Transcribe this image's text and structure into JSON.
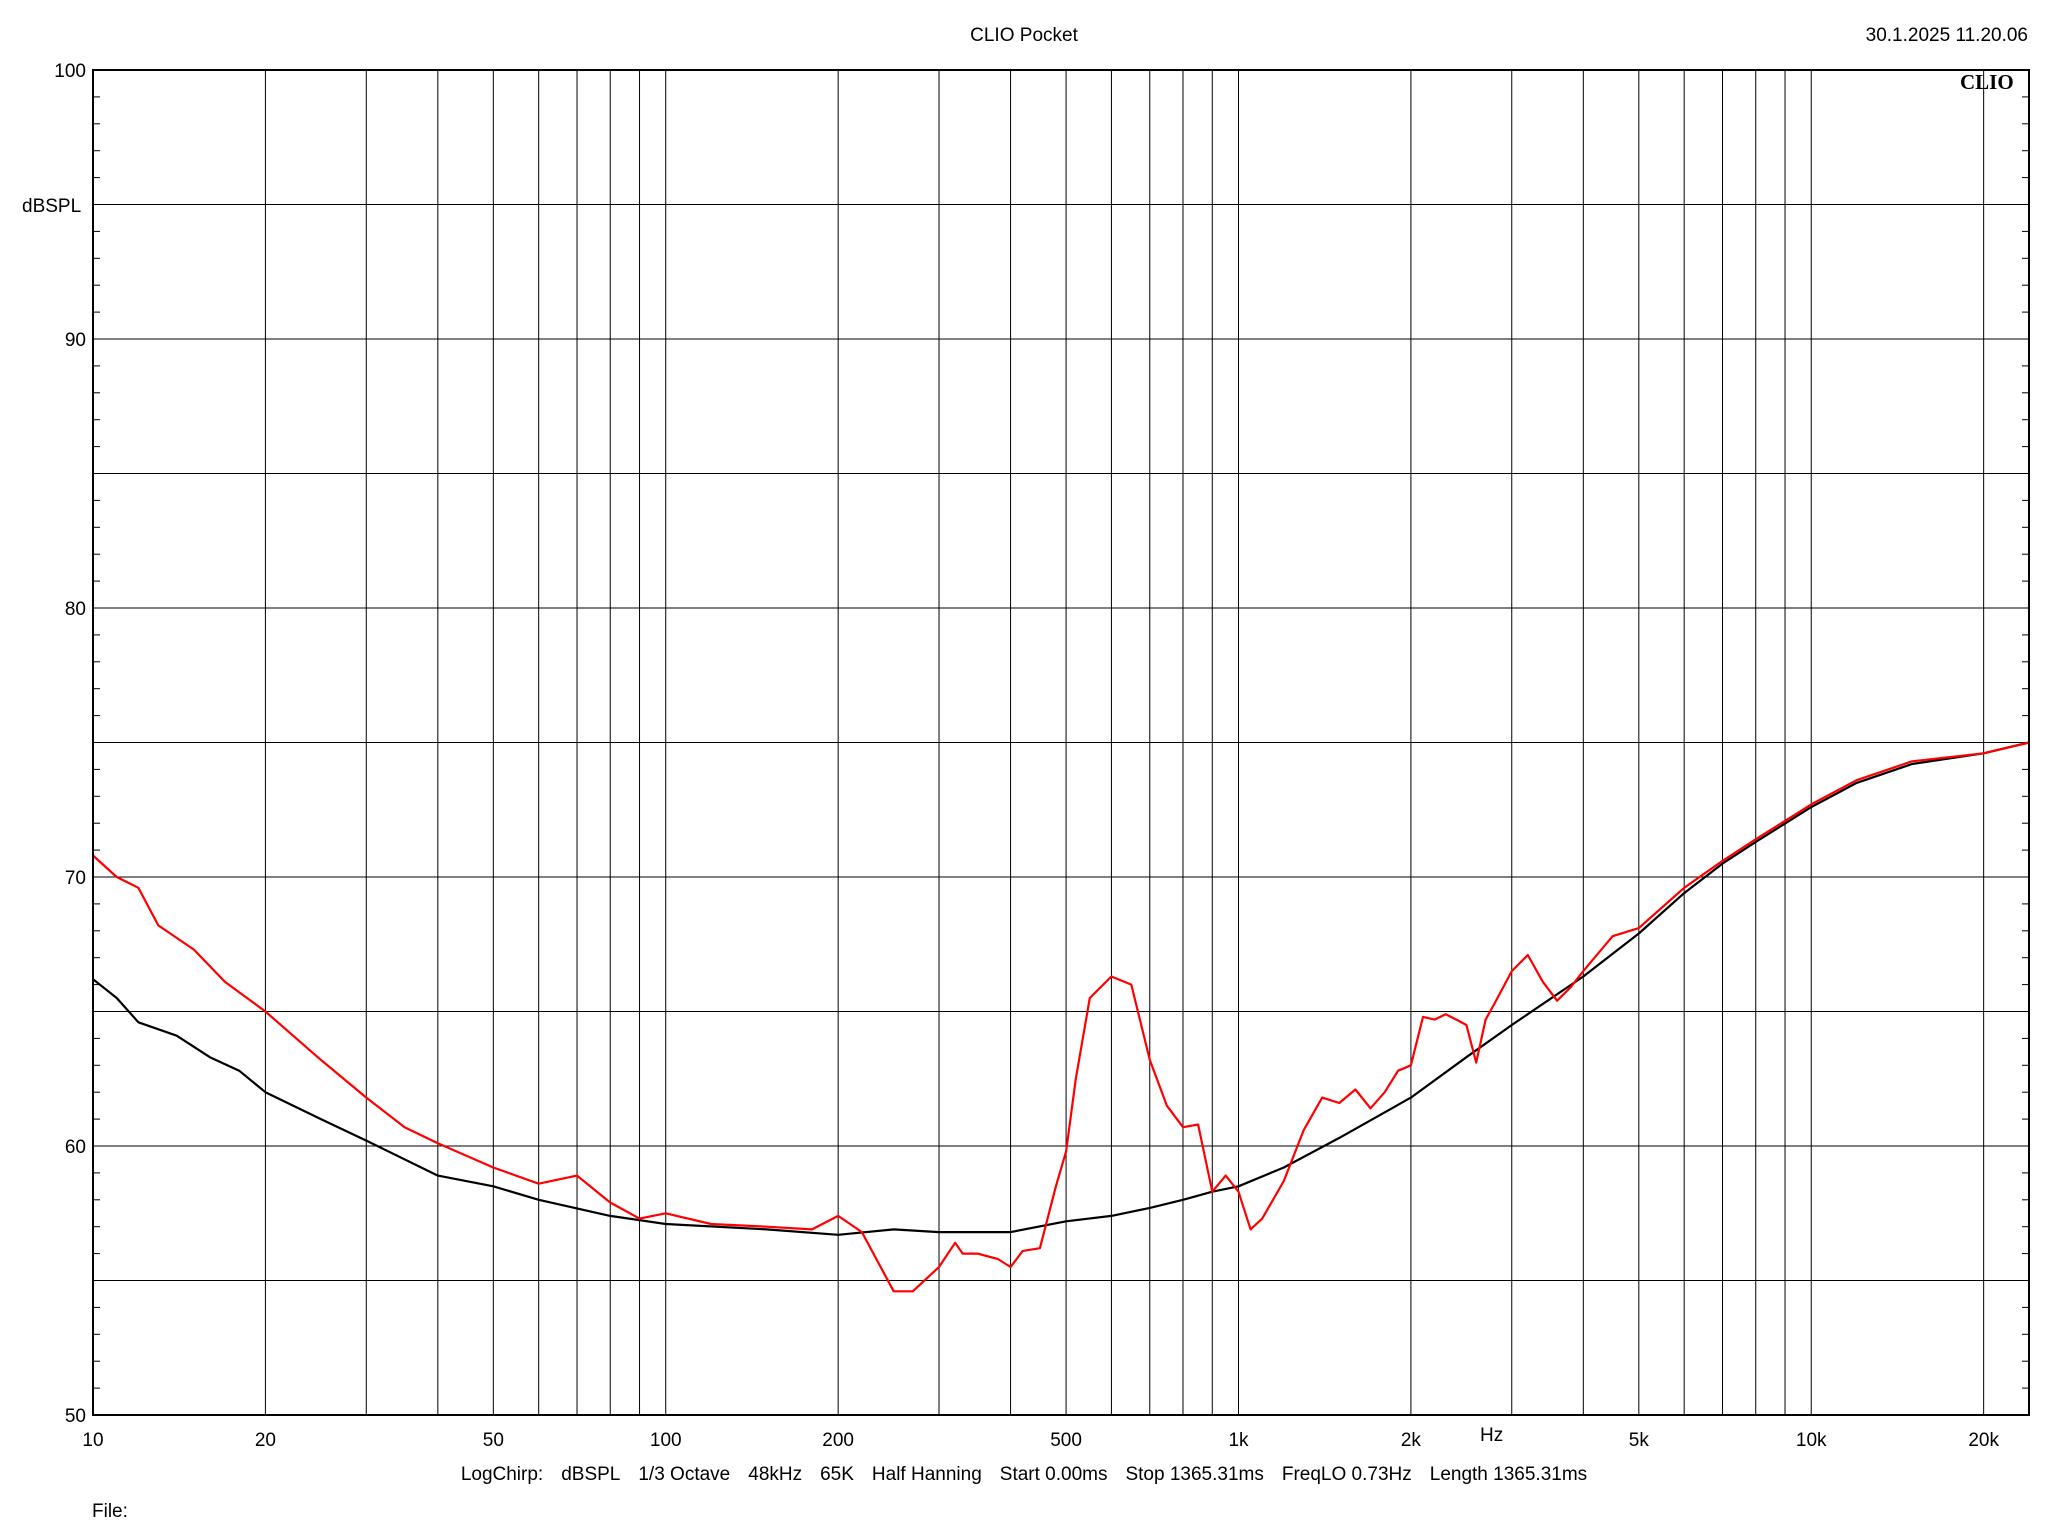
{
  "header": {
    "title": "CLIO Pocket",
    "datetime": "30.1.2025 11.20.06",
    "brand": "CLIO"
  },
  "footer": {
    "settings": [
      "LogChirp:",
      "dBSPL",
      "1/3 Octave",
      "48kHz",
      "65K",
      "Half Hanning",
      "Start 0.00ms",
      "Stop 1365.31ms",
      "FreqLO 0.73Hz",
      "Length 1365.31ms"
    ],
    "file_label": "File:"
  },
  "colors": {
    "background": "#ffffff",
    "grid": "#000000",
    "series_black": "#000000",
    "series_red": "#ff0000"
  },
  "chart_data": {
    "type": "line",
    "xscale": "log",
    "xlim": [
      10,
      24000
    ],
    "ylim": [
      50,
      100
    ],
    "ylabel": "dBSPL",
    "xunit_label": "Hz",
    "grid": true,
    "x_tick_labels": [
      {
        "value": 10,
        "label": "10"
      },
      {
        "value": 20,
        "label": "20"
      },
      {
        "value": 50,
        "label": "50"
      },
      {
        "value": 100,
        "label": "100"
      },
      {
        "value": 200,
        "label": "200"
      },
      {
        "value": 500,
        "label": "500"
      },
      {
        "value": 1000,
        "label": "1k"
      },
      {
        "value": 2000,
        "label": "2k"
      },
      {
        "value": 5000,
        "label": "5k"
      },
      {
        "value": 10000,
        "label": "10k"
      },
      {
        "value": 20000,
        "label": "20k"
      }
    ],
    "y_tick_labels": [
      {
        "value": 50,
        "label": "50"
      },
      {
        "value": 60,
        "label": "60"
      },
      {
        "value": 70,
        "label": "70"
      },
      {
        "value": 80,
        "label": "80"
      },
      {
        "value": 90,
        "label": "90"
      },
      {
        "value": 100,
        "label": "100"
      }
    ],
    "series": [
      {
        "color": "#000000",
        "x": [
          10,
          11,
          12,
          14,
          16,
          18,
          20,
          25,
          30,
          40,
          50,
          60,
          80,
          100,
          150,
          200,
          250,
          300,
          400,
          500,
          600,
          700,
          800,
          900,
          1000,
          1200,
          1500,
          2000,
          2500,
          3000,
          4000,
          5000,
          6000,
          7000,
          8000,
          10000,
          12000,
          15000,
          20000,
          24000
        ],
        "y": [
          66.2,
          65.5,
          64.6,
          64.1,
          63.3,
          62.8,
          62.0,
          61.0,
          60.2,
          58.9,
          58.5,
          58.0,
          57.4,
          57.1,
          56.9,
          56.7,
          56.9,
          56.8,
          56.8,
          57.2,
          57.4,
          57.7,
          58.0,
          58.3,
          58.5,
          59.2,
          60.3,
          61.8,
          63.3,
          64.5,
          66.3,
          67.9,
          69.4,
          70.5,
          71.3,
          72.6,
          73.5,
          74.2,
          74.6,
          75.0
        ]
      },
      {
        "color": "#ff0000",
        "x": [
          10,
          11,
          12,
          13,
          15,
          17,
          20,
          25,
          30,
          35,
          40,
          50,
          60,
          70,
          80,
          90,
          100,
          120,
          150,
          180,
          200,
          220,
          250,
          270,
          300,
          320,
          330,
          350,
          380,
          400,
          420,
          450,
          480,
          500,
          520,
          550,
          600,
          650,
          700,
          750,
          800,
          850,
          900,
          950,
          1000,
          1050,
          1100,
          1200,
          1300,
          1400,
          1500,
          1600,
          1700,
          1800,
          1900,
          2000,
          2100,
          2200,
          2300,
          2400,
          2500,
          2600,
          2700,
          2800,
          3000,
          3200,
          3400,
          3600,
          3800,
          4000,
          4500,
          5000,
          6000,
          7000,
          8000,
          10000,
          12000,
          15000,
          20000,
          24000
        ],
        "y": [
          70.8,
          70.0,
          69.6,
          68.2,
          67.3,
          66.1,
          65.0,
          63.2,
          61.8,
          60.7,
          60.1,
          59.2,
          58.6,
          58.9,
          57.9,
          57.3,
          57.5,
          57.1,
          57.0,
          56.9,
          57.4,
          56.8,
          54.6,
          54.6,
          55.5,
          56.4,
          56.0,
          56.0,
          55.8,
          55.5,
          56.1,
          56.2,
          58.5,
          59.8,
          62.5,
          65.5,
          66.3,
          66.0,
          63.2,
          61.5,
          60.7,
          60.8,
          58.3,
          58.9,
          58.3,
          56.9,
          57.3,
          58.7,
          60.6,
          61.8,
          61.6,
          62.1,
          61.4,
          62.0,
          62.8,
          63.0,
          64.8,
          64.7,
          64.9,
          64.7,
          64.5,
          63.1,
          64.7,
          65.3,
          66.5,
          67.1,
          66.1,
          65.4,
          65.9,
          66.5,
          67.8,
          68.1,
          69.6,
          70.6,
          71.4,
          72.7,
          73.6,
          74.3,
          74.6,
          75.0
        ]
      }
    ]
  }
}
